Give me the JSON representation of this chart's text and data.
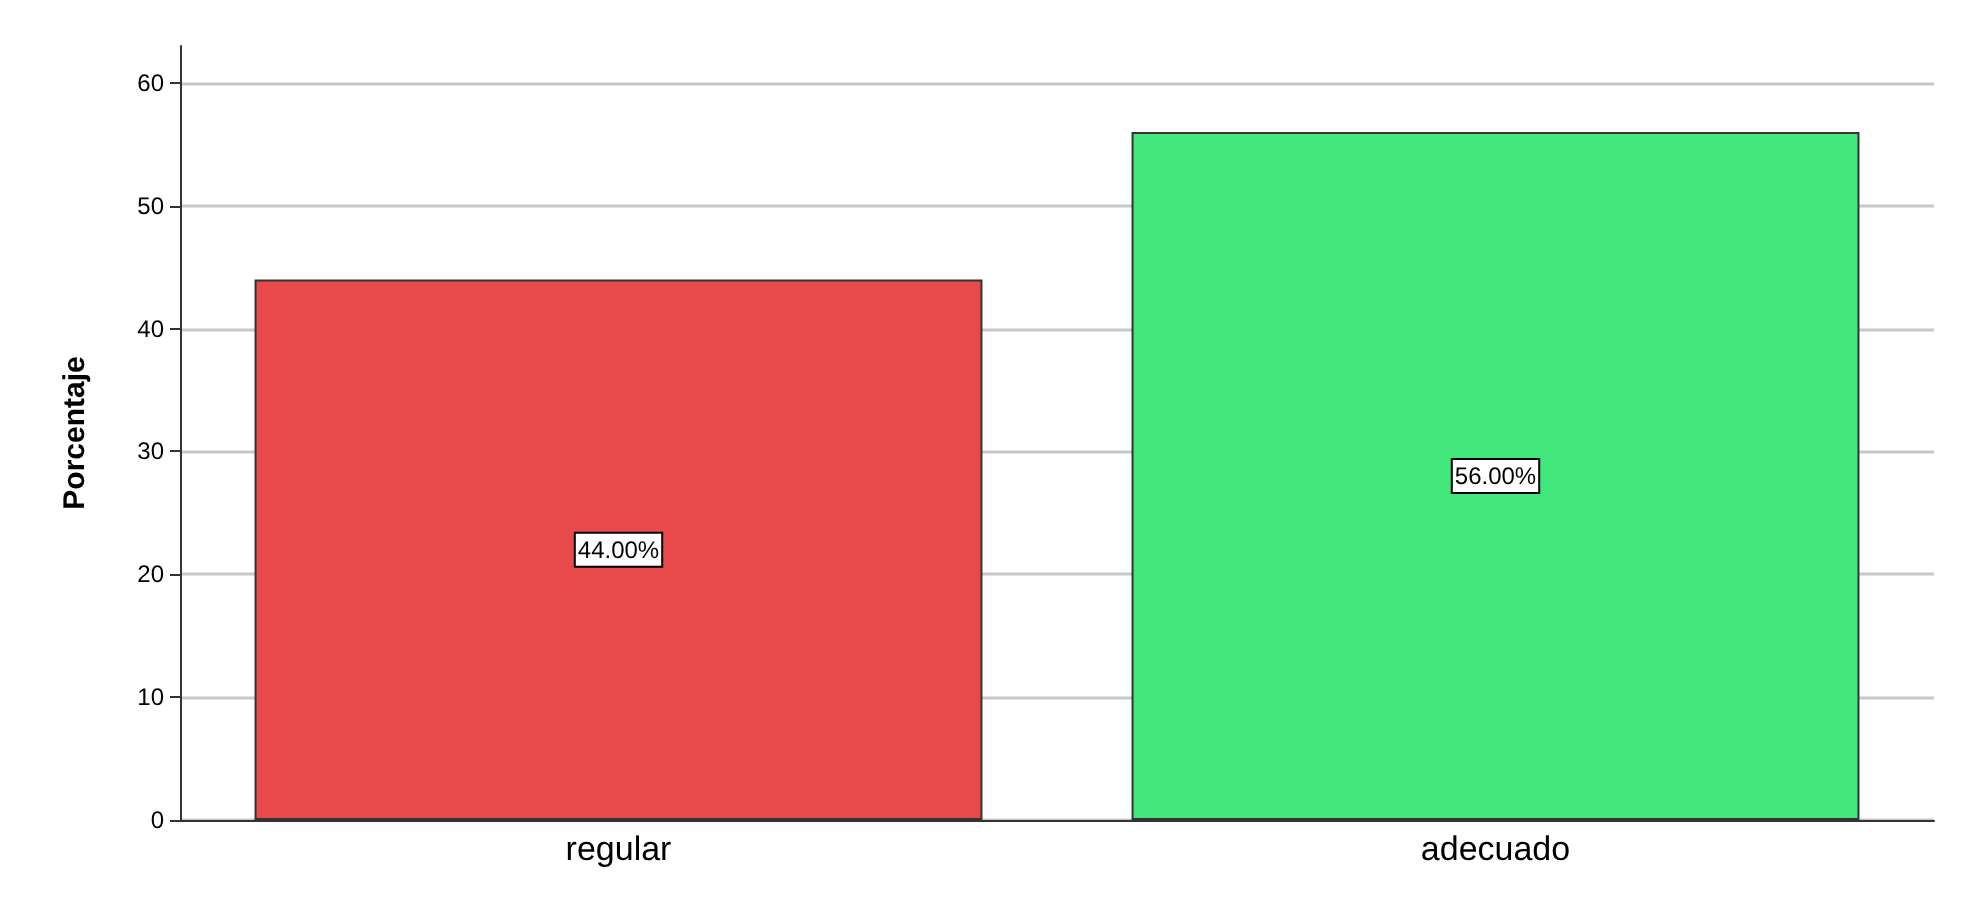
{
  "chart_data": {
    "type": "bar",
    "ylabel": "Porcentaje",
    "categories": [
      "regular",
      "adecuado"
    ],
    "values": [
      44,
      56
    ],
    "colors": [
      "#e84a4c",
      "#42e87c"
    ],
    "value_labels": [
      "44.00%",
      "56.00%"
    ],
    "ylim": [
      0,
      63
    ],
    "yticks": [
      0,
      10,
      20,
      30,
      40,
      50,
      60
    ],
    "grid": "y"
  }
}
